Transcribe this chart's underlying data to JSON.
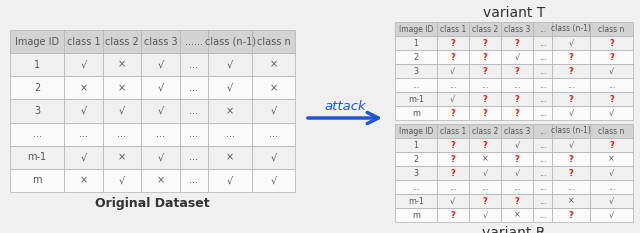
{
  "orig_headers": [
    "Image ID",
    "class 1",
    "class 2",
    "class 3",
    "......",
    "class (n-1)",
    "class n"
  ],
  "orig_rows": [
    [
      "1",
      "√",
      "×",
      "√",
      "...",
      "√",
      "×"
    ],
    [
      "2",
      "×",
      "×",
      "√",
      "...",
      "√",
      "×"
    ],
    [
      "3",
      "√",
      "√",
      "√",
      "...",
      "×",
      "√"
    ],
    [
      "...",
      "...",
      "...",
      "...",
      "...",
      "...",
      "..."
    ],
    [
      "m-1",
      "√",
      "×",
      "√",
      "...",
      "×",
      "√"
    ],
    [
      "m",
      "×",
      "√",
      "×",
      "...",
      "√",
      "√"
    ]
  ],
  "orig_title": "Original Dataset",
  "varT_headers": [
    "Image ID",
    "class 1",
    "class 2",
    "class 3",
    "...",
    "class (n-1)",
    "class n"
  ],
  "varT_rows": [
    [
      "1",
      "?",
      "?",
      "?",
      "...",
      "√",
      "?"
    ],
    [
      "2",
      "?",
      "?",
      "√",
      "...",
      "?",
      "?"
    ],
    [
      "3",
      "√",
      "?",
      "?",
      "...",
      "?",
      "√"
    ],
    [
      "...",
      "...",
      "...",
      "...",
      "...",
      "...",
      "..."
    ],
    [
      "m-1",
      "√",
      "?",
      "?",
      "...",
      "?",
      "?"
    ],
    [
      "m",
      "?",
      "?",
      "?",
      "...",
      "√",
      "√"
    ]
  ],
  "varR_headers": [
    "Image ID",
    "class 1",
    "class 2",
    "class 3",
    "...",
    "class (n-1)",
    "class n"
  ],
  "varR_rows": [
    [
      "1",
      "?",
      "?",
      "√",
      "...",
      "√",
      "?"
    ],
    [
      "2",
      "?",
      "×",
      "?",
      "...",
      "?",
      "×"
    ],
    [
      "3",
      "?",
      "√",
      "√",
      "...",
      "?",
      "√"
    ],
    [
      "...",
      "...",
      "...",
      "...",
      "...",
      "...",
      "..."
    ],
    [
      "m-1",
      "√",
      "?",
      "?",
      "...",
      "×",
      "√"
    ],
    [
      "m",
      "?",
      "√",
      "×",
      "...",
      "?",
      "√"
    ]
  ],
  "varT_title": "variant T",
  "varR_title": "variant R",
  "attack_text": "attack",
  "header_bg": "#d3d3d3",
  "row_bg_odd": "#f0f0f0",
  "row_bg_even": "#fafafa",
  "border_color": "#b0b0b0",
  "q_color": "#cc2200",
  "normal_color": "#555555",
  "title_color": "#333333",
  "attack_color": "#2255cc",
  "arrow_color": "#2255cc",
  "bg_color": "#f0f0f0"
}
